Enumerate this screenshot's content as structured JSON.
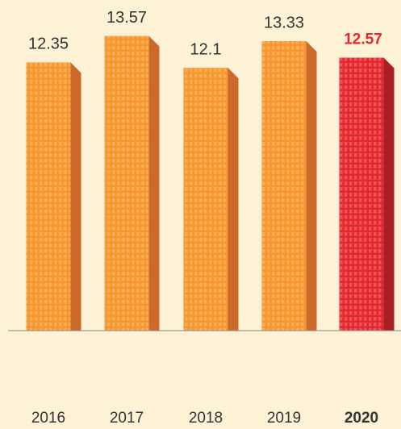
{
  "chart_data": {
    "type": "bar",
    "categories": [
      "2016",
      "2017",
      "2018",
      "2019",
      "2020"
    ],
    "values": [
      12.35,
      13.57,
      12.1,
      13.33,
      12.57
    ],
    "colors": [
      "#f7962b",
      "#f7962b",
      "#f7962b",
      "#f7962b",
      "#e4262d"
    ],
    "side_colors": [
      "#cc6a2c",
      "#cc6a2c",
      "#cc6a2c",
      "#cc6a2c",
      "#a81f24"
    ],
    "highlight_index": 4,
    "ylim": [
      0,
      14
    ]
  }
}
